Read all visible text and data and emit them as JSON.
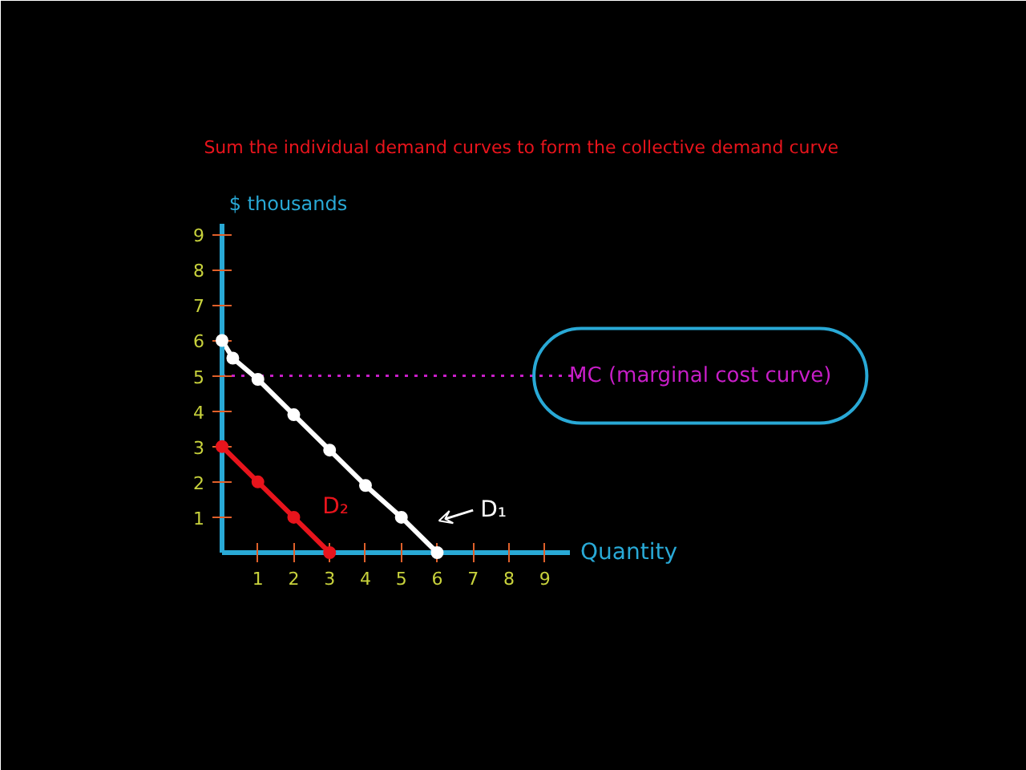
{
  "chart_data": {
    "type": "line",
    "title": "Sum the individual demand curves to form the collective demand curve",
    "xlabel": "Quantity",
    "ylabel": "$ thousands",
    "series": [
      {
        "name": "D₁",
        "color": "#ffffff",
        "x": [
          0,
          0.3,
          1,
          2,
          3,
          4,
          5,
          6
        ],
        "values": [
          6,
          5.5,
          4.9,
          3.9,
          2.9,
          1.9,
          1,
          0
        ]
      },
      {
        "name": "D₂",
        "color": "#e8141c",
        "x": [
          0,
          1,
          2,
          3
        ],
        "values": [
          3,
          2,
          1,
          0
        ]
      }
    ],
    "xlim": [
      0,
      9.7
    ],
    "ylim": [
      0,
      9.3
    ],
    "xticks": [
      1,
      2,
      3,
      4,
      5,
      6,
      7,
      8,
      9
    ],
    "yticks": [
      1,
      2,
      3,
      4,
      5,
      6,
      7,
      8,
      9
    ],
    "ref_lines": [
      {
        "axis": "y",
        "value": 5,
        "label": "MC (marginal cost curve)",
        "color": "#c81ec8",
        "line_style": "dotted"
      }
    ],
    "marker": "circle",
    "line_style": "solid",
    "grid": false
  }
}
